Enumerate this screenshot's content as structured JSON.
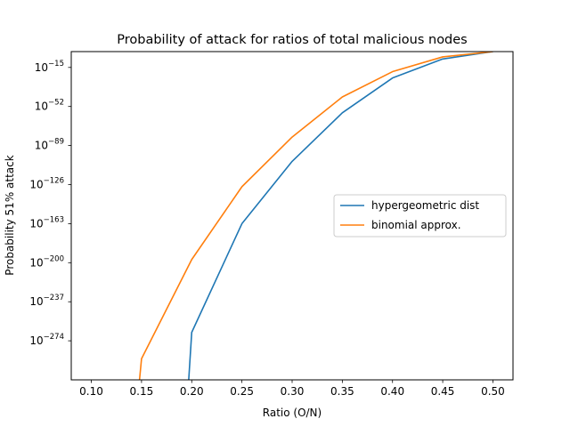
{
  "chart_data": {
    "type": "line",
    "title": "Probability of attack for ratios of total malicious nodes",
    "xlabel": "Ratio (O/N)",
    "ylabel": "Probability 51% attack",
    "xlim": [
      0.08,
      0.52
    ],
    "ylim_exponent": [
      -311,
      0
    ],
    "log_scale_y": true,
    "x_ticks": [
      0.1,
      0.15,
      0.2,
      0.25,
      0.3,
      0.35,
      0.4,
      0.45,
      0.5
    ],
    "x_tick_labels": [
      "0.10",
      "0.15",
      "0.20",
      "0.25",
      "0.30",
      "0.35",
      "0.40",
      "0.45",
      "0.50"
    ],
    "y_tick_exponents": [
      -15,
      -52,
      -89,
      -126,
      -163,
      -200,
      -237,
      -274
    ],
    "y_tick_base": "10",
    "y_tick_exponent_labels": [
      "−15",
      "−52",
      "−89",
      "−126",
      "−163",
      "−200",
      "−237",
      "−274"
    ],
    "grid": false,
    "legend_position": "center-right",
    "series": [
      {
        "name": "hypergeometric dist",
        "color": "#1f77b4",
        "x": [
          0.197,
          0.2,
          0.25,
          0.3,
          0.35,
          0.4,
          0.45,
          0.5
        ],
        "y_exponent": [
          -311,
          -266,
          -163,
          -104,
          -58,
          -25,
          -7,
          0
        ]
      },
      {
        "name": "binomial approx.",
        "color": "#ff7f0e",
        "x": [
          0.148,
          0.15,
          0.2,
          0.25,
          0.3,
          0.35,
          0.4,
          0.45,
          0.5
        ],
        "y_exponent": [
          -311,
          -291,
          -197,
          -128,
          -81,
          -43,
          -19,
          -5,
          0
        ]
      }
    ]
  }
}
